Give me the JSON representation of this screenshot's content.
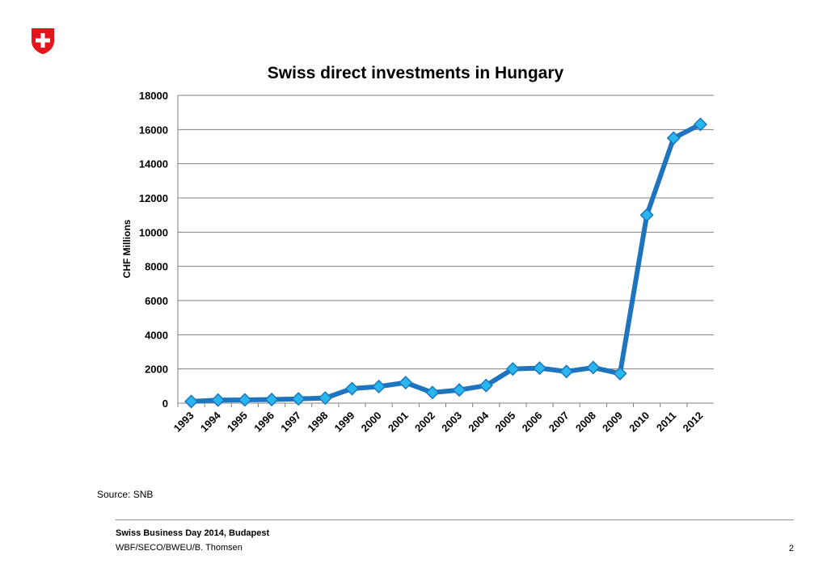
{
  "logo": {
    "name": "swiss-cross-emblem",
    "colors": {
      "shield": "#E3151B",
      "cross": "#FFFFFF"
    }
  },
  "source": "Source: SNB",
  "footer": {
    "title": "Swiss Business Day 2014, Budapest",
    "subtitle": "WBF/SECO/BWEU/B. Thomsen",
    "page_number": "2"
  },
  "chart_data": {
    "type": "line",
    "title": "Swiss direct investments in Hungary",
    "xlabel": "",
    "ylabel": "CHF Millions",
    "ylim": [
      0,
      18000
    ],
    "yticks": [
      "0",
      "2000",
      "4000",
      "6000",
      "8000",
      "10000",
      "12000",
      "14000",
      "16000",
      "18000"
    ],
    "grid": true,
    "legend": "none",
    "colors": {
      "line": "#1F74BE",
      "marker": "#27B6EE",
      "grid": "#7F7F7F"
    },
    "categories": [
      "1993",
      "1994",
      "1995",
      "1996",
      "1997",
      "1998",
      "1999",
      "2000",
      "2001",
      "2002",
      "2003",
      "2004",
      "2005",
      "2006",
      "2007",
      "2008",
      "2009",
      "2010",
      "2011",
      "2012"
    ],
    "series": [
      {
        "values": [
          100,
          180,
          190,
          210,
          250,
          300,
          850,
          970,
          1200,
          620,
          770,
          1030,
          2000,
          2050,
          1850,
          2080,
          1730,
          11000,
          15500,
          16300
        ]
      }
    ]
  }
}
